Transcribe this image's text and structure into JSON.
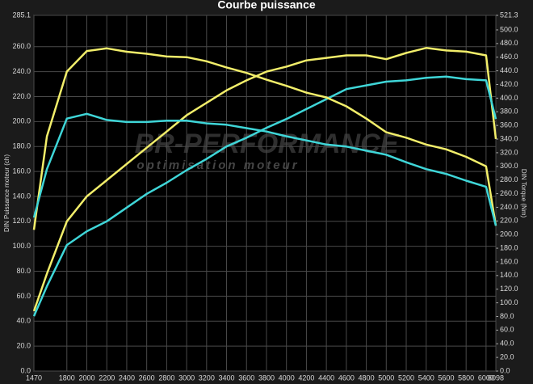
{
  "chart_data": {
    "type": "line",
    "title": "Courbe puissance",
    "ylabel": "DIN Puissance moteur (ch)",
    "y2label": "DIN Torque (Nm)",
    "watermark": [
      "BR-PERFORMANCE",
      "optimisation moteur"
    ],
    "grid": true,
    "x": [
      1470,
      1600,
      1800,
      2000,
      2200,
      2400,
      2600,
      2800,
      3000,
      3200,
      3400,
      3600,
      3800,
      4000,
      4200,
      4400,
      4600,
      4800,
      5000,
      5200,
      5400,
      5600,
      5800,
      6000,
      6098
    ],
    "xlim": [
      1470,
      6098
    ],
    "xticks": [
      1470,
      1800,
      2000,
      2200,
      2400,
      2600,
      2800,
      3000,
      3200,
      3400,
      3600,
      3800,
      4000,
      4200,
      4400,
      4600,
      4800,
      5000,
      5200,
      5400,
      5600,
      5800,
      6000,
      6098
    ],
    "ylim": [
      0,
      285.1
    ],
    "yticks": [
      {
        "value": 0,
        "label": "0.0"
      },
      {
        "value": 20,
        "label": "20.0"
      },
      {
        "value": 40,
        "label": "40.0"
      },
      {
        "value": 60,
        "label": "60.0"
      },
      {
        "value": 80,
        "label": "80.0"
      },
      {
        "value": 100,
        "label": "100.0"
      },
      {
        "value": 120,
        "label": "120.0"
      },
      {
        "value": 140,
        "label": "140.0"
      },
      {
        "value": 160,
        "label": "160.0"
      },
      {
        "value": 180,
        "label": "180.0"
      },
      {
        "value": 200,
        "label": "200.0"
      },
      {
        "value": 220,
        "label": "220.0"
      },
      {
        "value": 240,
        "label": "240.0"
      },
      {
        "value": 260,
        "label": "260.0"
      },
      285.1
    ],
    "y2lim": [
      0,
      521.3
    ],
    "y2ticks": [
      {
        "value": 0,
        "label": "0.0"
      },
      {
        "value": 20,
        "label": "20.0"
      },
      {
        "value": 40,
        "label": "40.0"
      },
      {
        "value": 60,
        "label": "60.0"
      },
      {
        "value": 80,
        "label": "80.0"
      },
      {
        "value": 100,
        "label": "100.0"
      },
      {
        "value": 120,
        "label": "120.0"
      },
      {
        "value": 140,
        "label": "140.0"
      },
      {
        "value": 160,
        "label": "160.0"
      },
      {
        "value": 180,
        "label": "180.0"
      },
      {
        "value": 200,
        "label": "200.0"
      },
      {
        "value": 220,
        "label": "220.0"
      },
      {
        "value": 240,
        "label": "240.0"
      },
      {
        "value": 260,
        "label": "260.0"
      },
      {
        "value": 280,
        "label": "280.0"
      },
      {
        "value": 300,
        "label": "300.0"
      },
      {
        "value": 320,
        "label": "320.0"
      },
      {
        "value": 340,
        "label": "340.0"
      },
      {
        "value": 360,
        "label": "360.0"
      },
      {
        "value": 380,
        "label": "380.0"
      },
      {
        "value": 400,
        "label": "400.0"
      },
      {
        "value": 420,
        "label": "420.0"
      },
      {
        "value": 440,
        "label": "440.0"
      },
      {
        "value": 460,
        "label": "460.0"
      },
      {
        "value": 480,
        "label": "480.0"
      },
      {
        "value": 500,
        "label": "500.0"
      },
      521.3
    ],
    "series": [
      {
        "color": "#f2ee6a",
        "values": [
          48,
          78,
          120,
          140,
          153,
          166,
          179,
          192,
          205,
          215,
          225,
          233,
          240,
          244,
          249,
          251,
          253,
          253,
          250,
          255,
          259,
          257,
          256,
          253,
          186
        ]
      },
      {
        "color": "#3fd6d8",
        "values": [
          44,
          68,
          101,
          112,
          120,
          131,
          142,
          151,
          161,
          170,
          180,
          187,
          195,
          202,
          210,
          218,
          226,
          229,
          232,
          233,
          235,
          236,
          234,
          233,
          202
        ]
      },
      {
        "color": "#f2ee6a",
        "axis": "y2",
        "values": [
          207,
          344,
          439,
          469,
          473,
          468,
          465,
          461,
          460,
          454,
          445,
          437,
          427,
          418,
          408,
          401,
          388,
          370,
          350,
          342,
          332,
          325,
          314,
          300,
          213
        ]
      },
      {
        "color": "#3fd6d8",
        "axis": "y2",
        "values": [
          225,
          296,
          370,
          377,
          368,
          365,
          365,
          367,
          367,
          363,
          361,
          356,
          351,
          344,
          338,
          332,
          329,
          323,
          317,
          306,
          296,
          289,
          279,
          270,
          213
        ]
      }
    ]
  }
}
